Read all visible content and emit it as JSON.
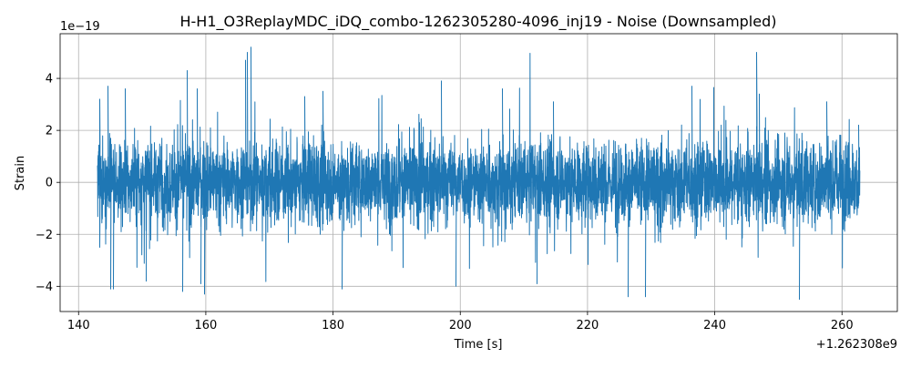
{
  "chart_data": {
    "type": "line",
    "title": "H-H1_O3ReplayMDC_iDQ_combo-1262305280-4096_inj19 - Noise (Downsampled)",
    "xlabel": "Time [s]",
    "ylabel": "Strain",
    "x_offset_label": "+1.262308e9",
    "y_scale_label": "1e−19",
    "xlim": [
      137.1,
      268.7
    ],
    "ylim": [
      -4.97,
      5.72
    ],
    "x_ticks": [
      140,
      160,
      180,
      200,
      220,
      240,
      260
    ],
    "x_tick_labels": [
      "140",
      "160",
      "180",
      "200",
      "220",
      "240",
      "260"
    ],
    "y_ticks": [
      -4,
      -2,
      0,
      2,
      4
    ],
    "y_tick_labels": [
      "−4",
      "−2",
      "0",
      "2",
      "4"
    ],
    "grid": true,
    "series": [
      {
        "x_range": [
          142.9,
          262.7
        ],
        "typical_envelope": [
          -1.5,
          1.5
        ],
        "peak_events": [
          {
            "x": 143.2,
            "y": 3.2
          },
          {
            "x": 143.2,
            "y": -2.5
          },
          {
            "x": 144.5,
            "y": 3.7
          },
          {
            "x": 145.0,
            "y": -4.1
          },
          {
            "x": 145.4,
            "y": -4.1
          },
          {
            "x": 147.3,
            "y": 3.6
          },
          {
            "x": 150.6,
            "y": -3.8
          },
          {
            "x": 156.3,
            "y": -4.2
          },
          {
            "x": 157.0,
            "y": 4.3
          },
          {
            "x": 158.6,
            "y": 3.6
          },
          {
            "x": 159.1,
            "y": -3.9
          },
          {
            "x": 159.7,
            "y": -4.3
          },
          {
            "x": 166.1,
            "y": 4.7
          },
          {
            "x": 166.4,
            "y": 5.0
          },
          {
            "x": 167.0,
            "y": 5.2
          },
          {
            "x": 175.5,
            "y": 3.3
          },
          {
            "x": 178.3,
            "y": 3.5
          },
          {
            "x": 181.3,
            "y": -4.1
          },
          {
            "x": 196.9,
            "y": 3.9
          },
          {
            "x": 199.3,
            "y": -4.0
          },
          {
            "x": 206.6,
            "y": 3.6
          },
          {
            "x": 212.0,
            "y": -3.9
          },
          {
            "x": 214.5,
            "y": 3.1
          },
          {
            "x": 226.3,
            "y": -4.4
          },
          {
            "x": 229.1,
            "y": -4.4
          },
          {
            "x": 236.3,
            "y": 3.7
          },
          {
            "x": 246.5,
            "y": 5.0
          },
          {
            "x": 247.0,
            "y": 3.4
          },
          {
            "x": 253.2,
            "y": -4.5
          },
          {
            "x": 257.6,
            "y": 3.1
          },
          {
            "x": 262.5,
            "y": 2.2
          }
        ]
      }
    ]
  },
  "colors": {
    "line": "#1f77b4",
    "grid": "#b0b0b0",
    "axes": "#000000",
    "background": "#ffffff"
  }
}
